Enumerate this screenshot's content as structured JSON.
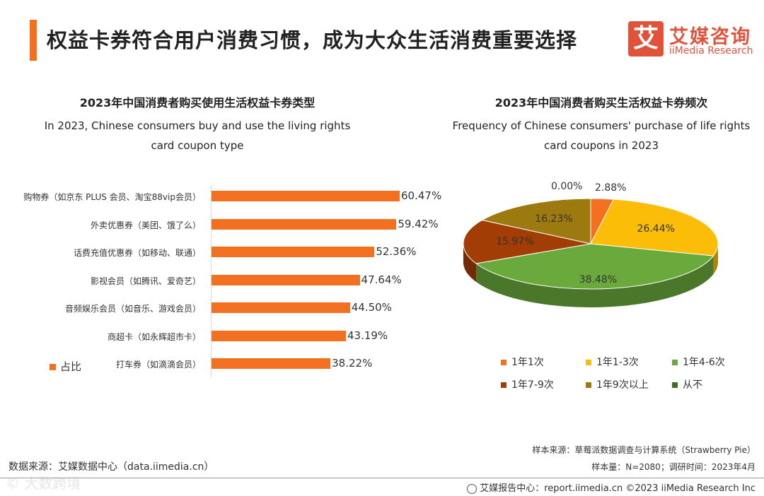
{
  "header": {
    "title": "权益卡券符合用户消费习惯，成为大众生活消费重要选择",
    "logo_glyph": "艾",
    "logo_cn": "艾媒咨询",
    "logo_en": "iiMedia Research"
  },
  "left_chart": {
    "title_cn": "2023年中国消费者购买使用生活权益卡券类型",
    "title_en_1": "In 2023, Chinese consumers buy and use the living rights",
    "title_en_2": "card coupon type",
    "legend": "占比"
  },
  "right_chart": {
    "title_cn": "2023年中国消费者购买生活权益卡券频次",
    "title_en_1": "Frequency of Chinese consumers' purchase of life rights",
    "title_en_2": "card coupons in 2023"
  },
  "chart_data": [
    {
      "type": "bar",
      "orientation": "horizontal",
      "title": "2023年中国消费者购买使用生活权益卡券类型",
      "categories": [
        "购物券（如京东 PLUS 会员、淘宝88vip会员）",
        "外卖优惠券（美团、饿了么）",
        "话费充值优惠券（如移动、联通）",
        "影视会员（如腾讯、爱奇艺）",
        "音频娱乐会员（如音乐、游戏会员）",
        "商超卡（如永辉超市卡）",
        "打车券（如滴滴会员）"
      ],
      "series": [
        {
          "name": "占比",
          "values": [
            60.47,
            59.42,
            52.36,
            47.64,
            44.5,
            43.19,
            38.22
          ]
        }
      ],
      "value_labels": [
        "60.47%",
        "59.42%",
        "52.36%",
        "47.64%",
        "44.50%",
        "43.19%",
        "38.22%"
      ],
      "unit": "%",
      "color": "#f37021",
      "legend_position": "bottom-left"
    },
    {
      "type": "pie",
      "style": "3d",
      "title": "2023年中国消费者购买生活权益卡券频次",
      "labels": [
        "1年1次",
        "1年1-3次",
        "1年4-6次",
        "1年7-9次",
        "1年9次以上",
        "从不"
      ],
      "values": [
        2.88,
        26.44,
        38.48,
        15.97,
        16.23,
        0.0
      ],
      "value_labels": [
        "2.88%",
        "26.44%",
        "38.48%",
        "15.97%",
        "16.23%",
        "0.00%"
      ],
      "colors": [
        "#f37021",
        "#fbbd08",
        "#6aaa3c",
        "#a33d06",
        "#9c7a10",
        "#3f6c24"
      ],
      "legend_position": "bottom"
    }
  ],
  "footer": {
    "source_left": "数据来源：艾媒数据中心（data.iimedia.cn）",
    "sample_source": "样本来源：草莓派数据调查与计算系统（Strawberry Pie）",
    "sample_size": "样本量：N=2080；调研时间：2023年4月",
    "report_center": "艾媒报告中心：report.iimedia.cn  ©2023  iiMedia Research  Inc",
    "watermark": "© 大数跨境"
  }
}
